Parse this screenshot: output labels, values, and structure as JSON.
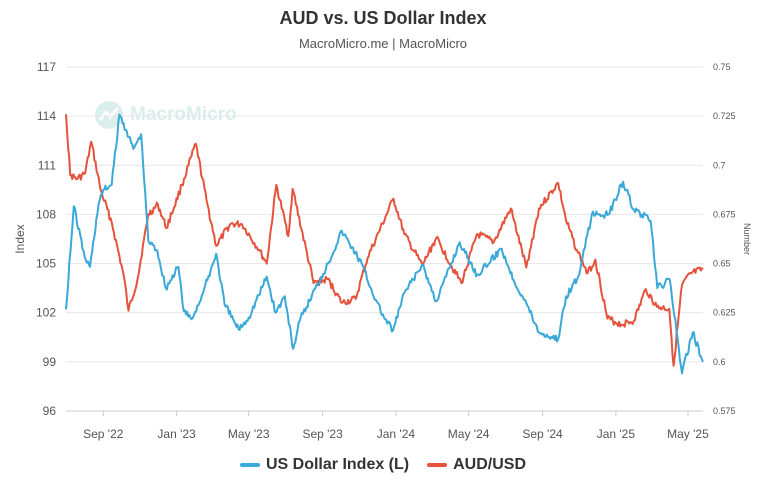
{
  "title": "AUD vs. US Dollar Index",
  "subtitle": "MacroMicro.me | MacroMicro",
  "watermark": "MacroMicro",
  "colors": {
    "dxy": "#3aa8d8",
    "aud": "#e5533d",
    "grid": "#e6e6e6",
    "axis_text": "#555555"
  },
  "legend": [
    {
      "label": "US Dollar Index (L)",
      "color": "#3aa8d8"
    },
    {
      "label": "AUD/USD",
      "color": "#e5533d"
    }
  ],
  "chart_data": {
    "type": "line",
    "x_range": [
      "2022-07-01",
      "2025-05-26"
    ],
    "x_ticks": [
      {
        "date": "2022-09-01",
        "label": "Sep '22"
      },
      {
        "date": "2023-01-01",
        "label": "Jan '23"
      },
      {
        "date": "2023-05-01",
        "label": "May '23"
      },
      {
        "date": "2023-09-01",
        "label": "Sep '23"
      },
      {
        "date": "2024-01-01",
        "label": "Jan '24"
      },
      {
        "date": "2024-05-01",
        "label": "May '24"
      },
      {
        "date": "2024-09-01",
        "label": "Sep '24"
      },
      {
        "date": "2025-01-01",
        "label": "Jan '25"
      },
      {
        "date": "2025-05-01",
        "label": "May '25"
      }
    ],
    "y_left": {
      "label": "Index",
      "min": 96,
      "max": 117,
      "ticks": [
        96,
        99,
        102,
        105,
        108,
        111,
        114,
        117
      ]
    },
    "y_right": {
      "label": "Number",
      "min": 0.575,
      "max": 0.75,
      "ticks": [
        "0.575",
        "0.6",
        "0.625",
        "0.65",
        "0.675",
        "0.7",
        "0.725",
        "0.75"
      ]
    },
    "grid": true,
    "legend_position": "bottom",
    "series": [
      {
        "name": "US Dollar Index (L)",
        "axis": "left",
        "points": [
          [
            "2022-07-01",
            102.2
          ],
          [
            "2022-07-14",
            108.5
          ],
          [
            "2022-08-01",
            105.4
          ],
          [
            "2022-08-10",
            104.8
          ],
          [
            "2022-08-24",
            108.6
          ],
          [
            "2022-09-01",
            109.5
          ],
          [
            "2022-09-15",
            109.8
          ],
          [
            "2022-09-28",
            114.1
          ],
          [
            "2022-10-10",
            113.1
          ],
          [
            "2022-10-21",
            112.0
          ],
          [
            "2022-11-03",
            112.9
          ],
          [
            "2022-11-15",
            106.4
          ],
          [
            "2022-11-30",
            105.8
          ],
          [
            "2022-12-14",
            103.5
          ],
          [
            "2023-01-04",
            104.8
          ],
          [
            "2023-01-13",
            102.1
          ],
          [
            "2023-01-26",
            101.6
          ],
          [
            "2023-02-14",
            103.2
          ],
          [
            "2023-03-08",
            105.6
          ],
          [
            "2023-03-22",
            102.5
          ],
          [
            "2023-04-14",
            101.0
          ],
          [
            "2023-05-01",
            101.7
          ],
          [
            "2023-05-31",
            104.2
          ],
          [
            "2023-06-15",
            102.0
          ],
          [
            "2023-06-30",
            103.0
          ],
          [
            "2023-07-14",
            99.8
          ],
          [
            "2023-07-25",
            101.5
          ],
          [
            "2023-08-20",
            103.5
          ],
          [
            "2023-09-10",
            105.0
          ],
          [
            "2023-10-03",
            107.0
          ],
          [
            "2023-10-20",
            106.0
          ],
          [
            "2023-11-05",
            105.0
          ],
          [
            "2023-11-28",
            102.8
          ],
          [
            "2023-12-14",
            101.6
          ],
          [
            "2023-12-27",
            100.9
          ],
          [
            "2024-01-15",
            103.2
          ],
          [
            "2024-02-14",
            104.9
          ],
          [
            "2024-03-08",
            102.7
          ],
          [
            "2024-04-16",
            106.3
          ],
          [
            "2024-05-15",
            104.3
          ],
          [
            "2024-06-25",
            105.9
          ],
          [
            "2024-07-15",
            104.0
          ],
          [
            "2024-08-05",
            102.6
          ],
          [
            "2024-08-26",
            100.8
          ],
          [
            "2024-09-27",
            100.4
          ],
          [
            "2024-10-10",
            103.0
          ],
          [
            "2024-11-01",
            104.3
          ],
          [
            "2024-11-22",
            108.0
          ],
          [
            "2024-12-20",
            108.0
          ],
          [
            "2025-01-13",
            110.0
          ],
          [
            "2025-01-31",
            108.3
          ],
          [
            "2025-02-28",
            107.6
          ],
          [
            "2025-03-11",
            103.5
          ],
          [
            "2025-04-01",
            104.0
          ],
          [
            "2025-04-21",
            98.3
          ],
          [
            "2025-05-09",
            100.8
          ],
          [
            "2025-05-26",
            99.0
          ]
        ]
      },
      {
        "name": "AUD/USD",
        "axis": "right",
        "points": [
          [
            "2022-07-01",
            0.726
          ],
          [
            "2022-07-08",
            0.695
          ],
          [
            "2022-07-20",
            0.693
          ],
          [
            "2022-08-02",
            0.696
          ],
          [
            "2022-08-12",
            0.712
          ],
          [
            "2022-08-28",
            0.687
          ],
          [
            "2022-09-15",
            0.671
          ],
          [
            "2022-10-05",
            0.644
          ],
          [
            "2022-10-13",
            0.626
          ],
          [
            "2022-10-28",
            0.642
          ],
          [
            "2022-11-15",
            0.675
          ],
          [
            "2022-12-01",
            0.68
          ],
          [
            "2022-12-15",
            0.668
          ],
          [
            "2023-01-10",
            0.69
          ],
          [
            "2023-02-02",
            0.711
          ],
          [
            "2023-02-20",
            0.682
          ],
          [
            "2023-03-08",
            0.659
          ],
          [
            "2023-03-31",
            0.67
          ],
          [
            "2023-04-20",
            0.67
          ],
          [
            "2023-05-18",
            0.657
          ],
          [
            "2023-05-31",
            0.65
          ],
          [
            "2023-06-16",
            0.69
          ],
          [
            "2023-07-06",
            0.664
          ],
          [
            "2023-07-13",
            0.688
          ],
          [
            "2023-08-17",
            0.64
          ],
          [
            "2023-09-10",
            0.642
          ],
          [
            "2023-10-03",
            0.63
          ],
          [
            "2023-10-26",
            0.632
          ],
          [
            "2023-11-15",
            0.653
          ],
          [
            "2023-12-28",
            0.683
          ],
          [
            "2024-01-15",
            0.665
          ],
          [
            "2024-02-14",
            0.649
          ],
          [
            "2024-03-08",
            0.663
          ],
          [
            "2024-04-19",
            0.64
          ],
          [
            "2024-05-15",
            0.665
          ],
          [
            "2024-06-12",
            0.661
          ],
          [
            "2024-07-10",
            0.678
          ],
          [
            "2024-08-05",
            0.648
          ],
          [
            "2024-08-26",
            0.678
          ],
          [
            "2024-09-27",
            0.691
          ],
          [
            "2024-10-10",
            0.672
          ],
          [
            "2024-10-28",
            0.657
          ],
          [
            "2024-11-15",
            0.645
          ],
          [
            "2024-11-28",
            0.652
          ],
          [
            "2024-12-18",
            0.622
          ],
          [
            "2025-01-10",
            0.619
          ],
          [
            "2025-01-31",
            0.621
          ],
          [
            "2025-02-20",
            0.637
          ],
          [
            "2025-03-10",
            0.628
          ],
          [
            "2025-03-31",
            0.627
          ],
          [
            "2025-04-07",
            0.598
          ],
          [
            "2025-04-21",
            0.639
          ],
          [
            "2025-05-06",
            0.645
          ],
          [
            "2025-05-26",
            0.647
          ]
        ]
      }
    ]
  }
}
